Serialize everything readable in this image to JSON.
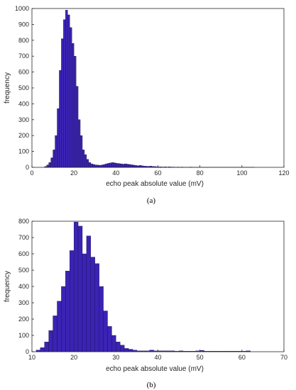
{
  "colors": {
    "bar_fill": "#3b23b4",
    "bar_edge": "#17104f",
    "axis": "#262626"
  },
  "chart_data": [
    {
      "type": "bar",
      "caption": "(a)",
      "xlabel": "echo peak absolute value (mV)",
      "ylabel": "frequency",
      "xlim": [
        0,
        120
      ],
      "ylim": [
        0,
        1000
      ],
      "xticks": [
        0,
        20,
        40,
        60,
        80,
        100,
        120
      ],
      "yticks": [
        0,
        100,
        200,
        300,
        400,
        500,
        600,
        700,
        800,
        900,
        1000
      ],
      "bin_width": 1,
      "bin_start": 6,
      "values": [
        5,
        15,
        30,
        60,
        110,
        200,
        370,
        610,
        810,
        930,
        990,
        960,
        880,
        780,
        700,
        510,
        300,
        200,
        110,
        80,
        50,
        30,
        22,
        18,
        15,
        14,
        13,
        15,
        18,
        22,
        25,
        28,
        30,
        28,
        25,
        24,
        22,
        20,
        22,
        20,
        18,
        16,
        14,
        12,
        10,
        12,
        10,
        8,
        7,
        6,
        8,
        6,
        5,
        4,
        3,
        3,
        2,
        3,
        2,
        3,
        2,
        2,
        1,
        2,
        1,
        2,
        1,
        1,
        1,
        2,
        1,
        1,
        1,
        1,
        1,
        1,
        1,
        1,
        1,
        1,
        1,
        1,
        1,
        1,
        1,
        1,
        1,
        1,
        1,
        1,
        1,
        1,
        1,
        1,
        1,
        1,
        1,
        1,
        1,
        1
      ]
    },
    {
      "type": "bar",
      "caption": "(b)",
      "xlabel": "echo peak absolute value (mV)",
      "ylabel": "frequency",
      "xlim": [
        10,
        70
      ],
      "ylim": [
        0,
        800
      ],
      "xticks": [
        10,
        20,
        30,
        40,
        50,
        60,
        70
      ],
      "yticks": [
        0,
        100,
        200,
        300,
        400,
        500,
        600,
        700,
        800
      ],
      "bin_width": 1,
      "bin_start": 11,
      "values": [
        10,
        25,
        60,
        130,
        220,
        310,
        400,
        495,
        620,
        795,
        770,
        600,
        710,
        580,
        540,
        400,
        250,
        155,
        100,
        60,
        40,
        20,
        15,
        10,
        5,
        5,
        5,
        10,
        5,
        5,
        5,
        5,
        5,
        3,
        5,
        3,
        3,
        3,
        5,
        8,
        3,
        3,
        3,
        3,
        3,
        3,
        3,
        3,
        3,
        3,
        5
      ]
    }
  ]
}
